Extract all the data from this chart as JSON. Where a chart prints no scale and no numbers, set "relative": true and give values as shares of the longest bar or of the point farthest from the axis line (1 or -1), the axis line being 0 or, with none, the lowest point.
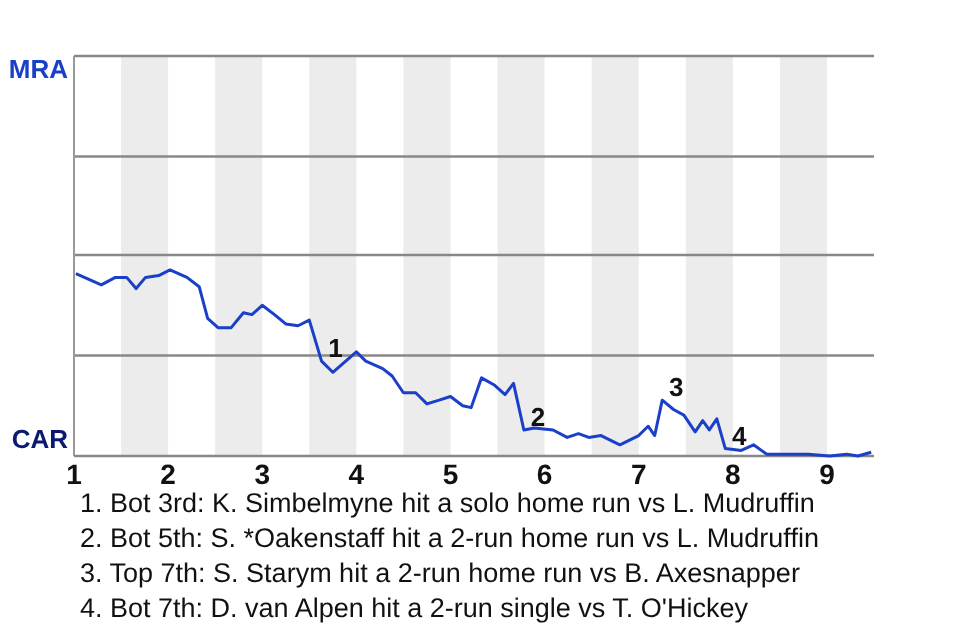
{
  "chart_data": {
    "type": "line",
    "relative": true,
    "x": [
      1.02,
      1.29,
      1.44,
      1.56,
      1.66,
      1.76,
      1.9,
      2.02,
      2.2,
      2.33,
      2.42,
      2.53,
      2.67,
      2.8,
      2.89,
      3,
      3.13,
      3.25,
      3.38,
      3.5,
      3.63,
      3.75,
      4,
      4.1,
      4.28,
      4.38,
      4.5,
      4.63,
      4.75,
      4.88,
      5,
      5.13,
      5.22,
      5.33,
      5.47,
      5.58,
      5.67,
      5.78,
      5.89,
      6.09,
      6.24,
      6.36,
      6.47,
      6.6,
      6.8,
      7,
      7.1,
      7.17,
      7.25,
      7.37,
      7.48,
      7.6,
      7.68,
      7.75,
      7.83,
      7.92,
      8.09,
      8.22,
      8.36,
      8.8,
      9.03,
      9.21,
      9.33,
      9.47
    ],
    "series": [
      {
        "color": "#1a3fc8",
        "values": [
          0.98,
          0.92,
          0.96,
          0.96,
          0.9,
          0.96,
          0.97,
          1,
          0.96,
          0.91,
          0.74,
          0.69,
          0.69,
          0.77,
          0.76,
          0.81,
          0.76,
          0.71,
          0.7,
          0.73,
          0.51,
          0.45,
          0.56,
          0.51,
          0.47,
          0.43,
          0.34,
          0.34,
          0.28,
          0.3,
          0.32,
          0.27,
          0.26,
          0.42,
          0.38,
          0.33,
          0.39,
          0.14,
          0.15,
          0.14,
          0.1,
          0.12,
          0.1,
          0.11,
          0.06,
          0.11,
          0.16,
          0.11,
          0.3,
          0.25,
          0.22,
          0.13,
          0.19,
          0.14,
          0.2,
          0.04,
          0.03,
          0.06,
          0.01,
          0.01,
          0,
          0.01,
          0,
          0.02
        ]
      }
    ],
    "xlim": [
      1,
      9.5
    ],
    "xticks": [
      1,
      2,
      3,
      4,
      5,
      6,
      7,
      8,
      9
    ],
    "tick_labels": "x",
    "marker": "none",
    "line_style": "solid",
    "ref_lines": [
      {
        "axis": "y",
        "value": 0.54,
        "color": "#888888"
      },
      {
        "axis": "y",
        "value": 1.08,
        "color": "#888888"
      },
      {
        "axis": "y",
        "value": 1.61,
        "color": "#888888"
      },
      {
        "axis": "y",
        "value": 2.15,
        "color": "#888888"
      }
    ],
    "bands": [
      {
        "axis": "x",
        "from": 1.5,
        "to": 2,
        "color": "#ececec"
      },
      {
        "axis": "x",
        "from": 2.5,
        "to": 3,
        "color": "#ececec"
      },
      {
        "axis": "x",
        "from": 3.5,
        "to": 4,
        "color": "#ececec"
      },
      {
        "axis": "x",
        "from": 4.5,
        "to": 5,
        "color": "#ececec"
      },
      {
        "axis": "x",
        "from": 5.5,
        "to": 6,
        "color": "#ececec"
      },
      {
        "axis": "x",
        "from": 6.5,
        "to": 7,
        "color": "#ececec"
      },
      {
        "axis": "x",
        "from": 7.5,
        "to": 8,
        "color": "#ececec"
      },
      {
        "axis": "x",
        "from": 8.5,
        "to": 9,
        "color": "#ececec"
      }
    ],
    "annotations": [
      {
        "text": "1",
        "x": 3.63,
        "y": 0.51
      },
      {
        "text": "2",
        "x": 5.78,
        "y": 0.14
      },
      {
        "text": "3",
        "x": 7.25,
        "y": 0.3
      },
      {
        "text": "4",
        "x": 7.92,
        "y": 0.04
      },
      "MRA",
      "CAR",
      "1. Bot 3rd: K. Simbelmyne hit a solo home run vs L. Mudruffin",
      "2. Bot 5th: S. *Oakenstaff hit a 2-run home run vs L. Mudruffin",
      "3. Top 7th: S. Starym hit a 2-run home run vs B. Axesnapper",
      "4. Bot 7th: D. van Alpen hit a 2-run single vs T. O'Hickey"
    ]
  }
}
